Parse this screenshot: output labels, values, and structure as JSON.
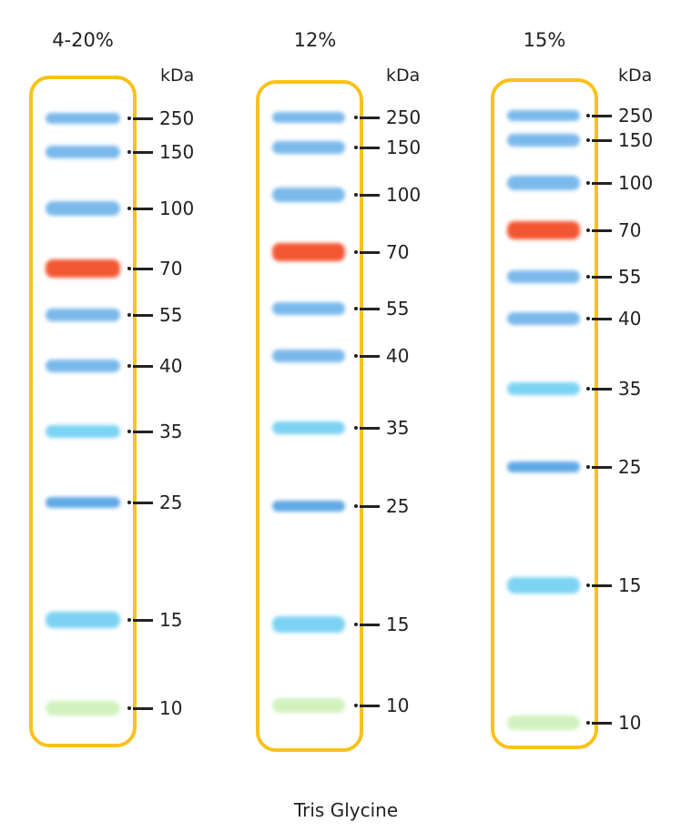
{
  "unit_label": "kDa",
  "footer": "Tris Glycine",
  "colors": {
    "outline": "#f9c21a",
    "blue": "#5aa8e6",
    "red": "#f24e28",
    "cyan": "#5cc8f0",
    "deep_blue": "#3a94e0",
    "green": "#c6efae"
  },
  "marker_sizes_kda": [
    "250",
    "150",
    "100",
    "70",
    "55",
    "40",
    "35",
    "25",
    "15",
    "10"
  ],
  "lanes": [
    {
      "title": "4-20%"
    },
    {
      "title": "12%"
    },
    {
      "title": "15%"
    }
  ]
}
